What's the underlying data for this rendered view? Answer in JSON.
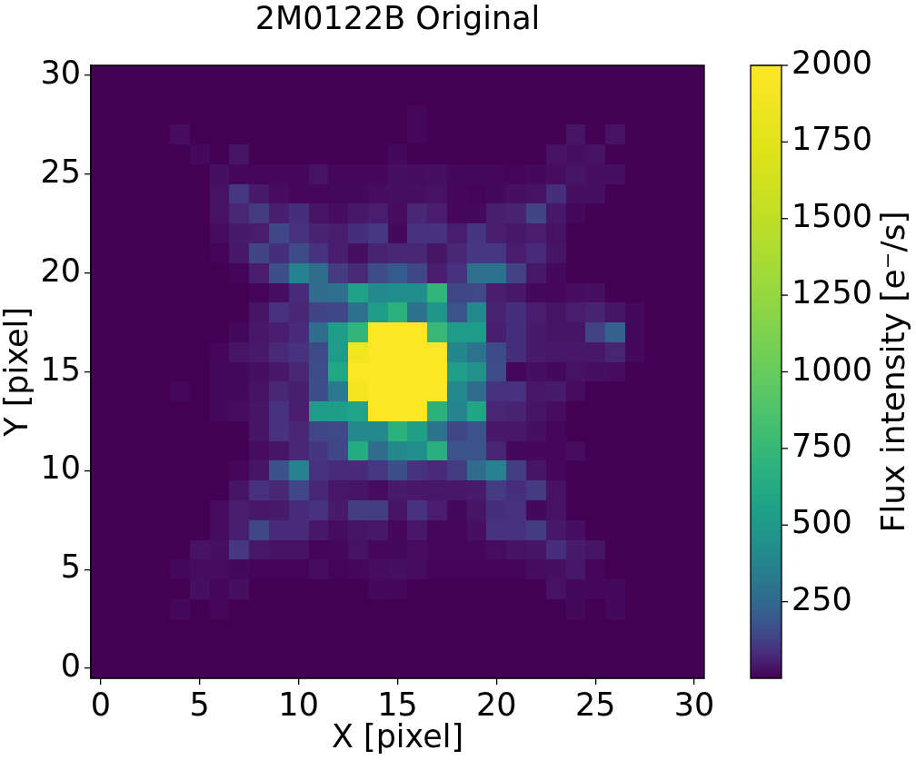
{
  "chart_data": {
    "type": "heatmap",
    "title": "2M0122B Original",
    "xlabel": "X [pixel]",
    "ylabel": "Y [pixel]",
    "clabel": "Flux intensity [e⁻/s]",
    "categories": [
      "0",
      null,
      null,
      null,
      null,
      "5",
      null,
      null,
      null,
      null,
      "10",
      null,
      null,
      null,
      null,
      "15",
      null,
      null,
      null,
      null,
      "20",
      null,
      null,
      null,
      null,
      "25",
      null,
      null,
      null,
      null,
      "30"
    ],
    "y_categories": [
      "30",
      null,
      null,
      null,
      null,
      "25",
      null,
      null,
      null,
      null,
      "20",
      null,
      null,
      null,
      null,
      "15",
      null,
      null,
      null,
      null,
      "10",
      null,
      null,
      null,
      null,
      "5",
      null,
      null,
      null,
      null,
      "0"
    ],
    "clim": [
      0,
      2000
    ],
    "cticks": [
      250,
      500,
      750,
      1000,
      1250,
      1500,
      1750,
      2000
    ],
    "cells": [
      [
        0,
        0,
        0,
        0,
        0,
        0,
        0,
        0,
        0,
        0,
        0,
        0,
        0,
        0,
        0,
        0,
        0,
        0,
        0,
        0,
        0,
        0,
        0,
        0,
        0,
        0,
        0,
        0,
        0,
        0,
        0
      ],
      [
        0,
        0,
        0,
        0,
        0,
        0,
        0,
        0,
        0,
        0,
        0,
        0,
        0,
        0,
        0,
        0,
        0,
        0,
        0,
        0,
        0,
        0,
        0,
        0,
        0,
        0,
        0,
        0,
        0,
        0,
        0
      ],
      [
        0,
        0,
        0,
        0,
        0,
        0,
        0,
        0,
        0,
        0,
        0,
        0,
        0,
        0,
        0,
        0,
        10,
        0,
        0,
        0,
        0,
        0,
        0,
        0,
        0,
        0,
        0,
        0,
        0,
        0,
        0
      ],
      [
        0,
        0,
        0,
        0,
        20,
        0,
        0,
        0,
        0,
        0,
        0,
        0,
        0,
        0,
        0,
        0,
        10,
        0,
        0,
        0,
        0,
        0,
        0,
        0,
        35,
        0,
        30,
        0,
        0,
        0,
        0
      ],
      [
        0,
        0,
        0,
        0,
        0,
        15,
        0,
        35,
        0,
        0,
        0,
        0,
        0,
        0,
        0,
        15,
        0,
        0,
        0,
        0,
        0,
        0,
        0,
        30,
        25,
        30,
        0,
        0,
        0,
        0,
        0
      ],
      [
        0,
        0,
        0,
        0,
        0,
        0,
        25,
        10,
        10,
        10,
        10,
        30,
        10,
        10,
        10,
        25,
        20,
        25,
        15,
        15,
        10,
        5,
        15,
        20,
        35,
        25,
        25,
        0,
        0,
        0,
        0
      ],
      [
        0,
        0,
        0,
        0,
        0,
        0,
        30,
        105,
        45,
        20,
        10,
        10,
        15,
        15,
        20,
        25,
        25,
        30,
        10,
        5,
        15,
        25,
        30,
        85,
        25,
        25,
        0,
        0,
        0,
        0,
        0
      ],
      [
        0,
        0,
        0,
        0,
        0,
        0,
        30,
        70,
        115,
        55,
        85,
        35,
        20,
        40,
        50,
        20,
        70,
        50,
        10,
        15,
        55,
        60,
        135,
        40,
        15,
        0,
        0,
        0,
        0,
        0,
        0
      ],
      [
        0,
        0,
        0,
        0,
        0,
        0,
        20,
        45,
        50,
        140,
        90,
        60,
        50,
        85,
        105,
        15,
        95,
        95,
        50,
        100,
        50,
        40,
        50,
        30,
        0,
        0,
        0,
        0,
        0,
        0,
        0
      ],
      [
        0,
        0,
        0,
        0,
        0,
        0,
        5,
        40,
        135,
        85,
        155,
        95,
        50,
        25,
        60,
        70,
        70,
        35,
        70,
        105,
        105,
        50,
        80,
        35,
        0,
        0,
        0,
        0,
        0,
        0,
        0
      ],
      [
        0,
        0,
        0,
        0,
        0,
        0,
        0,
        5,
        50,
        165,
        365,
        270,
        115,
        75,
        160,
        200,
        140,
        50,
        90,
        275,
        290,
        130,
        40,
        15,
        0,
        0,
        0,
        0,
        0,
        0,
        0
      ],
      [
        0,
        0,
        0,
        0,
        0,
        0,
        0,
        0,
        5,
        25,
        80,
        265,
        275,
        560,
        395,
        420,
        420,
        720,
        140,
        150,
        50,
        40,
        15,
        10,
        20,
        25,
        0,
        0,
        0,
        0,
        0
      ],
      [
        0,
        0,
        0,
        0,
        0,
        0,
        0,
        0,
        35,
        90,
        70,
        135,
        140,
        285,
        530,
        680,
        290,
        480,
        180,
        395,
        60,
        85,
        50,
        35,
        50,
        60,
        35,
        15,
        0,
        0,
        0
      ],
      [
        0,
        0,
        0,
        0,
        0,
        0,
        0,
        15,
        40,
        50,
        80,
        270,
        530,
        720,
        2000,
        2000,
        2000,
        750,
        510,
        510,
        55,
        85,
        45,
        35,
        35,
        130,
        225,
        15,
        0,
        0,
        0
      ],
      [
        0,
        0,
        0,
        0,
        0,
        0,
        10,
        35,
        45,
        75,
        95,
        155,
        520,
        1900,
        2000,
        2000,
        2000,
        2000,
        385,
        300,
        155,
        85,
        45,
        40,
        40,
        40,
        65,
        15,
        0,
        0,
        0
      ],
      [
        0,
        0,
        0,
        0,
        0,
        0,
        15,
        15,
        25,
        40,
        70,
        160,
        600,
        2000,
        2000,
        2000,
        2000,
        2000,
        535,
        445,
        160,
        10,
        25,
        15,
        30,
        25,
        20,
        0,
        0,
        0,
        0
      ],
      [
        0,
        0,
        0,
        0,
        10,
        0,
        15,
        15,
        30,
        70,
        55,
        165,
        320,
        1900,
        2000,
        2000,
        2000,
        2000,
        400,
        265,
        95,
        95,
        40,
        45,
        20,
        0,
        0,
        0,
        0,
        0,
        0
      ],
      [
        0,
        0,
        0,
        0,
        0,
        0,
        15,
        20,
        35,
        95,
        50,
        510,
        530,
        570,
        2000,
        2000,
        2000,
        680,
        375,
        590,
        70,
        60,
        35,
        20,
        0,
        0,
        0,
        0,
        0,
        0,
        0
      ],
      [
        0,
        0,
        0,
        0,
        0,
        0,
        0,
        0,
        35,
        95,
        70,
        140,
        150,
        395,
        400,
        680,
        550,
        300,
        140,
        175,
        40,
        40,
        25,
        10,
        0,
        0,
        0,
        0,
        0,
        0,
        0
      ],
      [
        0,
        0,
        0,
        0,
        0,
        0,
        0,
        0,
        20,
        35,
        70,
        100,
        140,
        640,
        270,
        400,
        440,
        670,
        175,
        180,
        65,
        15,
        10,
        10,
        20,
        0,
        0,
        0,
        0,
        0,
        0
      ],
      [
        0,
        0,
        0,
        0,
        0,
        0,
        0,
        10,
        35,
        170,
        365,
        95,
        80,
        80,
        105,
        165,
        95,
        80,
        115,
        265,
        365,
        120,
        35,
        10,
        0,
        0,
        0,
        0,
        0,
        0,
        0
      ],
      [
        0,
        0,
        0,
        0,
        0,
        0,
        0,
        35,
        90,
        70,
        140,
        70,
        40,
        35,
        20,
        45,
        40,
        40,
        40,
        45,
        115,
        85,
        115,
        30,
        0,
        0,
        0,
        0,
        0,
        0,
        0
      ],
      [
        0,
        0,
        0,
        0,
        0,
        0,
        20,
        50,
        40,
        45,
        80,
        95,
        45,
        120,
        120,
        35,
        95,
        50,
        15,
        35,
        85,
        90,
        15,
        30,
        0,
        0,
        0,
        0,
        0,
        0,
        0
      ],
      [
        0,
        0,
        0,
        0,
        0,
        0,
        20,
        55,
        140,
        80,
        80,
        40,
        20,
        35,
        40,
        10,
        40,
        10,
        10,
        25,
        95,
        95,
        115,
        40,
        25,
        0,
        0,
        0,
        0,
        0,
        0
      ],
      [
        0,
        0,
        0,
        0,
        0,
        30,
        25,
        105,
        40,
        30,
        30,
        5,
        10,
        30,
        10,
        15,
        20,
        10,
        10,
        10,
        20,
        30,
        35,
        85,
        45,
        35,
        0,
        0,
        0,
        0,
        0
      ],
      [
        0,
        0,
        0,
        0,
        15,
        20,
        20,
        15,
        5,
        5,
        5,
        20,
        5,
        15,
        20,
        25,
        20,
        5,
        5,
        5,
        5,
        5,
        20,
        25,
        40,
        10,
        0,
        0,
        0,
        0,
        0
      ],
      [
        0,
        0,
        0,
        0,
        0,
        25,
        10,
        25,
        0,
        0,
        0,
        0,
        0,
        0,
        15,
        10,
        0,
        0,
        0,
        0,
        0,
        0,
        0,
        30,
        15,
        10,
        15,
        0,
        0,
        0,
        0
      ],
      [
        0,
        0,
        0,
        0,
        15,
        0,
        10,
        0,
        0,
        0,
        0,
        0,
        0,
        0,
        0,
        0,
        0,
        0,
        0,
        0,
        0,
        0,
        0,
        0,
        15,
        0,
        15,
        0,
        0,
        0,
        0
      ],
      [
        0,
        0,
        0,
        0,
        0,
        0,
        0,
        0,
        0,
        0,
        0,
        0,
        0,
        0,
        0,
        0,
        0,
        0,
        0,
        0,
        0,
        0,
        0,
        0,
        0,
        0,
        0,
        0,
        0,
        0,
        0
      ],
      [
        0,
        0,
        0,
        0,
        0,
        0,
        0,
        0,
        0,
        0,
        0,
        0,
        0,
        0,
        0,
        0,
        0,
        0,
        0,
        0,
        0,
        0,
        0,
        0,
        0,
        0,
        0,
        0,
        0,
        0,
        0
      ],
      [
        0,
        0,
        0,
        0,
        0,
        0,
        0,
        0,
        0,
        0,
        0,
        0,
        0,
        0,
        0,
        0,
        0,
        0,
        0,
        0,
        0,
        0,
        0,
        0,
        0,
        0,
        0,
        0,
        0,
        0,
        0
      ]
    ]
  }
}
